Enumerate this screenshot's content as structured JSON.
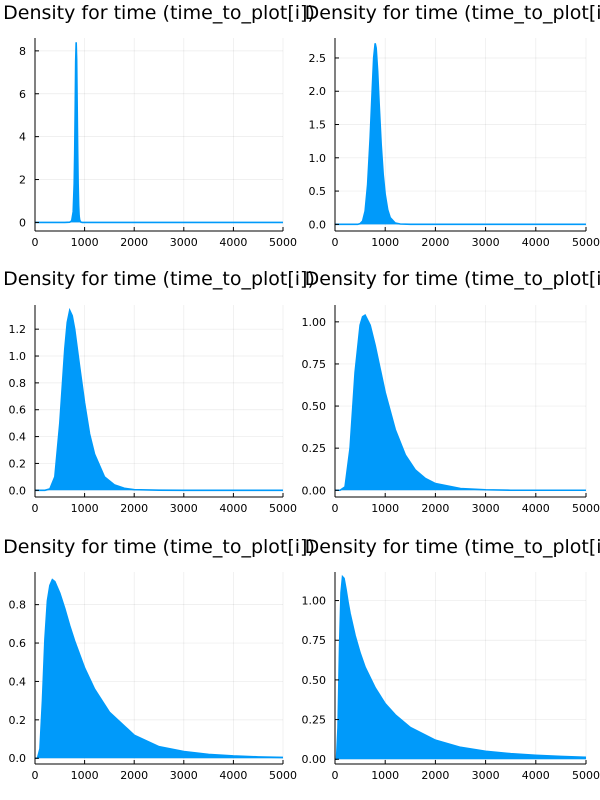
{
  "chart_data": [
    {
      "type": "area",
      "title": "Density for time (time_to_plot[i])",
      "xlabel": "",
      "ylabel": "",
      "xlim": [
        0,
        5000
      ],
      "ylim": [
        -0.4,
        8.6
      ],
      "xticks": [
        0,
        1000,
        2000,
        3000,
        4000,
        5000
      ],
      "xtick_labels": [
        "0",
        "1000",
        "2000",
        "3000",
        "4000",
        "5000"
      ],
      "yticks": [
        0,
        2,
        4,
        6,
        8
      ],
      "ytick_labels": [
        "0",
        "2",
        "4",
        "6",
        "8"
      ],
      "grid": true,
      "series": [
        {
          "color": "#009AFA",
          "x": [
            0,
            600,
            700,
            740,
            770,
            790,
            800,
            810,
            820,
            830,
            840,
            850,
            860,
            870,
            880,
            890,
            900,
            920,
            950,
            1000,
            1100,
            5000
          ],
          "y": [
            0,
            0,
            0.01,
            0.08,
            0.5,
            1.8,
            3.2,
            5.2,
            7.5,
            8.4,
            7.6,
            5.5,
            3.4,
            1.8,
            0.8,
            0.3,
            0.12,
            0.02,
            0,
            0,
            0,
            0
          ]
        }
      ]
    },
    {
      "type": "area",
      "title": "Density for time (time_to_plot[i])",
      "xlabel": "",
      "ylabel": "",
      "xlim": [
        0,
        5000
      ],
      "ylim": [
        -0.1,
        2.8
      ],
      "xticks": [
        0,
        1000,
        2000,
        3000,
        4000,
        5000
      ],
      "xtick_labels": [
        "0",
        "1000",
        "2000",
        "3000",
        "4000",
        "5000"
      ],
      "yticks": [
        0,
        0.5,
        1.0,
        1.5,
        2.0,
        2.5
      ],
      "ytick_labels": [
        "0.0",
        "0.5",
        "1.0",
        "1.5",
        "2.0",
        "2.5"
      ],
      "grid": true,
      "series": [
        {
          "color": "#009AFA",
          "x": [
            0,
            450,
            500,
            550,
            600,
            650,
            700,
            740,
            770,
            800,
            820,
            850,
            880,
            920,
            960,
            1000,
            1050,
            1100,
            1200,
            1300,
            1500,
            5000
          ],
          "y": [
            0,
            0,
            0.01,
            0.05,
            0.2,
            0.6,
            1.3,
            2.0,
            2.5,
            2.72,
            2.65,
            2.3,
            1.8,
            1.2,
            0.75,
            0.45,
            0.22,
            0.1,
            0.02,
            0.005,
            0,
            0
          ]
        }
      ]
    },
    {
      "type": "area",
      "title": "Density for time (time_to_plot[i])",
      "xlabel": "",
      "ylabel": "",
      "xlim": [
        0,
        5000
      ],
      "ylim": [
        -0.05,
        1.38
      ],
      "xticks": [
        0,
        1000,
        2000,
        3000,
        4000,
        5000
      ],
      "xtick_labels": [
        "0",
        "1000",
        "2000",
        "3000",
        "4000",
        "5000"
      ],
      "yticks": [
        0,
        0.2,
        0.4,
        0.6,
        0.8,
        1.0,
        1.2
      ],
      "ytick_labels": [
        "0.0",
        "0.2",
        "0.4",
        "0.6",
        "0.8",
        "1.0",
        "1.2"
      ],
      "grid": true,
      "series": [
        {
          "color": "#009AFA",
          "x": [
            0,
            200,
            300,
            400,
            500,
            600,
            650,
            700,
            750,
            800,
            900,
            1000,
            1100,
            1200,
            1400,
            1600,
            1800,
            2000,
            2500,
            3000,
            5000
          ],
          "y": [
            0,
            0,
            0.01,
            0.1,
            0.5,
            1.05,
            1.25,
            1.34,
            1.3,
            1.2,
            0.92,
            0.65,
            0.42,
            0.27,
            0.1,
            0.04,
            0.015,
            0.005,
            0.001,
            0,
            0
          ]
        }
      ]
    },
    {
      "type": "area",
      "title": "Density for time (time_to_plot[i])",
      "xlabel": "",
      "ylabel": "",
      "xlim": [
        0,
        5000
      ],
      "ylim": [
        -0.04,
        1.1
      ],
      "xticks": [
        0,
        1000,
        2000,
        3000,
        4000,
        5000
      ],
      "xtick_labels": [
        "0",
        "1000",
        "2000",
        "3000",
        "4000",
        "5000"
      ],
      "yticks": [
        0,
        0.25,
        0.5,
        0.75,
        1.0
      ],
      "ytick_labels": [
        "0.00",
        "0.25",
        "0.50",
        "0.75",
        "1.00"
      ],
      "grid": true,
      "series": [
        {
          "color": "#009AFA",
          "x": [
            0,
            100,
            200,
            300,
            400,
            500,
            550,
            600,
            700,
            800,
            900,
            1000,
            1200,
            1400,
            1600,
            1800,
            2000,
            2500,
            3000,
            3500,
            5000
          ],
          "y": [
            0,
            0,
            0.02,
            0.25,
            0.7,
            0.98,
            1.03,
            1.04,
            0.98,
            0.86,
            0.72,
            0.58,
            0.36,
            0.21,
            0.12,
            0.07,
            0.04,
            0.01,
            0.003,
            0,
            0
          ]
        }
      ]
    },
    {
      "type": "area",
      "title": "Density for time (time_to_plot[i])",
      "xlabel": "",
      "ylabel": "",
      "xlim": [
        0,
        5000
      ],
      "ylim": [
        -0.03,
        0.97
      ],
      "xticks": [
        0,
        1000,
        2000,
        3000,
        4000,
        5000
      ],
      "xtick_labels": [
        "0",
        "1000",
        "2000",
        "3000",
        "4000",
        "5000"
      ],
      "yticks": [
        0,
        0.2,
        0.4,
        0.6,
        0.8
      ],
      "ytick_labels": [
        "0.0",
        "0.2",
        "0.4",
        "0.6",
        "0.8"
      ],
      "grid": true,
      "series": [
        {
          "color": "#009AFA",
          "x": [
            0,
            50,
            100,
            150,
            200,
            250,
            300,
            350,
            400,
            500,
            600,
            700,
            800,
            1000,
            1200,
            1500,
            2000,
            2500,
            3000,
            3500,
            4000,
            4500,
            5000
          ],
          "y": [
            0,
            0,
            0.05,
            0.3,
            0.62,
            0.82,
            0.9,
            0.93,
            0.92,
            0.86,
            0.78,
            0.69,
            0.61,
            0.47,
            0.36,
            0.24,
            0.12,
            0.06,
            0.035,
            0.02,
            0.012,
            0.007,
            0.004
          ]
        }
      ]
    },
    {
      "type": "area",
      "title": "Density for time (time_to_plot[i])",
      "xlabel": "",
      "ylabel": "",
      "xlim": [
        0,
        5000
      ],
      "ylim": [
        -0.03,
        1.18
      ],
      "xticks": [
        0,
        1000,
        2000,
        3000,
        4000,
        5000
      ],
      "xtick_labels": [
        "0",
        "1000",
        "2000",
        "3000",
        "4000",
        "5000"
      ],
      "yticks": [
        0,
        0.25,
        0.5,
        0.75,
        1.0
      ],
      "ytick_labels": [
        "0.00",
        "0.25",
        "0.50",
        "0.75",
        "1.00"
      ],
      "grid": true,
      "series": [
        {
          "color": "#009AFA",
          "x": [
            0,
            30,
            60,
            90,
            120,
            150,
            180,
            220,
            260,
            300,
            400,
            500,
            600,
            800,
            1000,
            1200,
            1500,
            2000,
            2500,
            3000,
            3500,
            4000,
            4500,
            5000
          ],
          "y": [
            0,
            0,
            0.2,
            0.7,
            1.05,
            1.15,
            1.14,
            1.07,
            0.99,
            0.92,
            0.78,
            0.67,
            0.58,
            0.45,
            0.35,
            0.28,
            0.2,
            0.12,
            0.075,
            0.05,
            0.035,
            0.025,
            0.018,
            0.012
          ]
        }
      ]
    }
  ]
}
